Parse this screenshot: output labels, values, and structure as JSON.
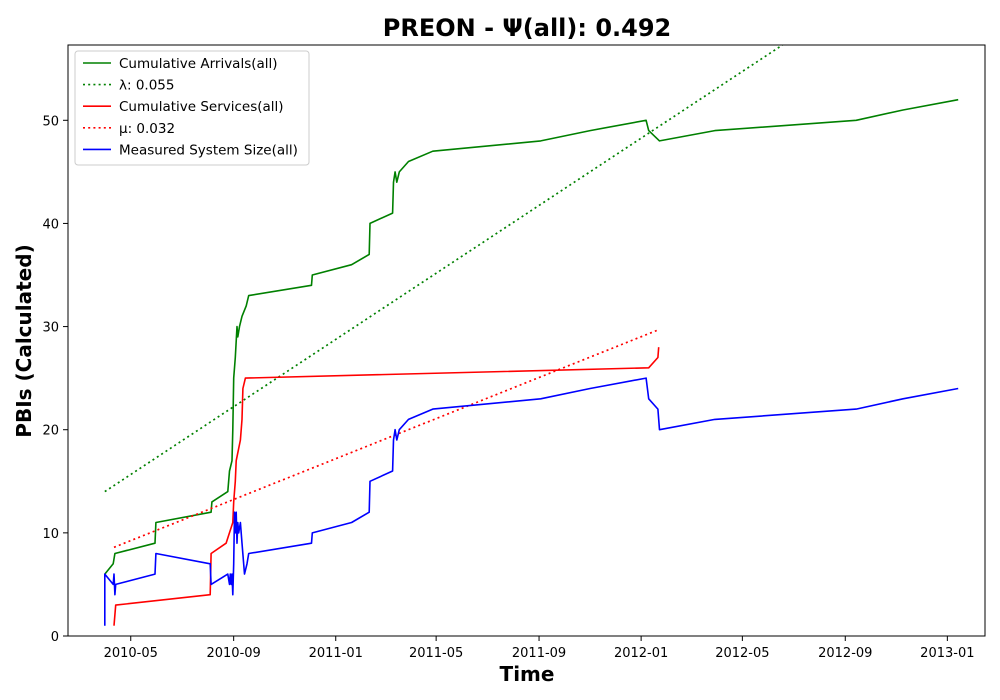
{
  "chart_data": {
    "type": "line",
    "title": "PREON -  Ψ(all): 0.492",
    "xlabel": "Time",
    "ylabel": "PBIs (Calculated)",
    "x_axis_type": "date",
    "xlim": [
      "2010-02-15",
      "2013-02-15"
    ],
    "ylim": [
      0,
      57.3
    ],
    "x_ticks": [
      "2010-05",
      "2010-09",
      "2011-01",
      "2011-05",
      "2011-09",
      "2012-01",
      "2012-05",
      "2012-09",
      "2013-01"
    ],
    "y_ticks": [
      0,
      10,
      20,
      30,
      40,
      50
    ],
    "grid": false,
    "legend_position": "top-left",
    "series": [
      {
        "name": "Cumulative Arrivals(all)",
        "color": "#008000",
        "style": "solid",
        "points": [
          [
            "2010-03-31",
            6
          ],
          [
            "2010-04-10",
            7
          ],
          [
            "2010-04-12",
            8
          ],
          [
            "2010-05-30",
            9
          ],
          [
            "2010-05-31",
            11
          ],
          [
            "2010-08-05",
            12
          ],
          [
            "2010-08-06",
            13
          ],
          [
            "2010-08-25",
            14
          ],
          [
            "2010-08-27",
            16
          ],
          [
            "2010-08-30",
            17
          ],
          [
            "2010-08-31",
            20
          ],
          [
            "2010-09-01",
            25
          ],
          [
            "2010-09-03",
            27
          ],
          [
            "2010-09-05",
            30
          ],
          [
            "2010-09-06",
            29
          ],
          [
            "2010-09-08",
            30
          ],
          [
            "2010-09-11",
            31
          ],
          [
            "2010-09-16",
            32
          ],
          [
            "2010-09-19",
            33
          ],
          [
            "2010-12-03",
            34
          ],
          [
            "2010-12-04",
            35
          ],
          [
            "2011-01-20",
            36
          ],
          [
            "2011-02-10",
            37
          ],
          [
            "2011-02-11",
            40
          ],
          [
            "2011-03-10",
            41
          ],
          [
            "2011-03-11",
            44
          ],
          [
            "2011-03-13",
            45
          ],
          [
            "2011-03-15",
            44
          ],
          [
            "2011-03-18",
            45
          ],
          [
            "2011-03-29",
            46
          ],
          [
            "2011-04-27",
            47
          ],
          [
            "2011-09-03",
            48
          ],
          [
            "2011-11-01",
            49
          ],
          [
            "2012-01-07",
            50
          ],
          [
            "2012-01-10",
            49
          ],
          [
            "2012-01-23",
            48
          ],
          [
            "2012-03-29",
            49
          ],
          [
            "2012-09-14",
            50
          ],
          [
            "2012-11-09",
            51
          ],
          [
            "2013-01-14",
            52
          ]
        ]
      },
      {
        "name": "λ: 0.055",
        "color": "#008000",
        "style": "dotted",
        "points": [
          [
            "2010-03-31",
            14
          ],
          [
            "2012-06-18",
            57.3
          ]
        ]
      },
      {
        "name": "Cumulative Services(all)",
        "color": "#ff0000",
        "style": "solid",
        "points": [
          [
            "2010-04-11",
            1
          ],
          [
            "2010-04-13",
            3
          ],
          [
            "2010-08-04",
            4
          ],
          [
            "2010-08-05",
            8
          ],
          [
            "2010-08-23",
            9
          ],
          [
            "2010-08-31",
            11
          ],
          [
            "2010-09-01",
            13
          ],
          [
            "2010-09-03",
            15
          ],
          [
            "2010-09-04",
            17
          ],
          [
            "2010-09-09",
            19
          ],
          [
            "2010-09-11",
            21
          ],
          [
            "2010-09-12",
            24
          ],
          [
            "2010-09-15",
            25
          ],
          [
            "2012-01-10",
            26
          ],
          [
            "2012-01-21",
            27
          ],
          [
            "2012-01-22",
            28
          ]
        ]
      },
      {
        "name": "μ: 0.032",
        "color": "#ff0000",
        "style": "dotted",
        "points": [
          [
            "2010-04-11",
            8.6
          ],
          [
            "2012-01-22",
            29.7
          ]
        ]
      },
      {
        "name": "Measured System Size(all)",
        "color": "#0000ff",
        "style": "solid",
        "points": [
          [
            "2010-03-31",
            1
          ],
          [
            "2010-03-31",
            6
          ],
          [
            "2010-04-10",
            5
          ],
          [
            "2010-04-11",
            6
          ],
          [
            "2010-04-12",
            4
          ],
          [
            "2010-04-13",
            5
          ],
          [
            "2010-05-30",
            6
          ],
          [
            "2010-05-31",
            8
          ],
          [
            "2010-08-04",
            7
          ],
          [
            "2010-08-05",
            5
          ],
          [
            "2010-08-25",
            6
          ],
          [
            "2010-08-27",
            5
          ],
          [
            "2010-08-28",
            6
          ],
          [
            "2010-08-29",
            5
          ],
          [
            "2010-08-30",
            6
          ],
          [
            "2010-08-31",
            4
          ],
          [
            "2010-09-01",
            7
          ],
          [
            "2010-09-02",
            12
          ],
          [
            "2010-09-03",
            10
          ],
          [
            "2010-09-04",
            12
          ],
          [
            "2010-09-05",
            9
          ],
          [
            "2010-09-06",
            11
          ],
          [
            "2010-09-07",
            10
          ],
          [
            "2010-09-09",
            11
          ],
          [
            "2010-09-11",
            9
          ],
          [
            "2010-09-14",
            6
          ],
          [
            "2010-09-17",
            7
          ],
          [
            "2010-09-19",
            8
          ],
          [
            "2010-12-03",
            9
          ],
          [
            "2010-12-04",
            10
          ],
          [
            "2011-01-20",
            11
          ],
          [
            "2011-02-10",
            12
          ],
          [
            "2011-02-11",
            15
          ],
          [
            "2011-03-10",
            16
          ],
          [
            "2011-03-11",
            19
          ],
          [
            "2011-03-13",
            20
          ],
          [
            "2011-03-15",
            19
          ],
          [
            "2011-03-18",
            20
          ],
          [
            "2011-03-29",
            21
          ],
          [
            "2011-04-27",
            22
          ],
          [
            "2011-09-03",
            23
          ],
          [
            "2011-11-01",
            24
          ],
          [
            "2012-01-07",
            25
          ],
          [
            "2012-01-10",
            23
          ],
          [
            "2012-01-21",
            22
          ],
          [
            "2012-01-23",
            20
          ],
          [
            "2012-03-29",
            21
          ],
          [
            "2012-09-14",
            22
          ],
          [
            "2012-11-09",
            23
          ],
          [
            "2013-01-14",
            24
          ]
        ]
      }
    ]
  }
}
